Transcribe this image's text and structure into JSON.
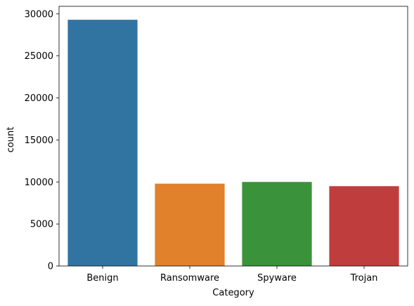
{
  "chart_data": {
    "type": "bar",
    "categories": [
      "Benign",
      "Ransomware",
      "Spyware",
      "Trojan"
    ],
    "values": [
      29300,
      9800,
      10000,
      9500
    ],
    "colors": [
      "#3274a1",
      "#e1812c",
      "#3a923a",
      "#c03d3e"
    ],
    "title": "",
    "xlabel": "Category",
    "ylabel": "count",
    "ylim": [
      0,
      30900
    ],
    "yticks": [
      0,
      5000,
      10000,
      15000,
      20000,
      25000,
      30000
    ],
    "grid": false
  }
}
